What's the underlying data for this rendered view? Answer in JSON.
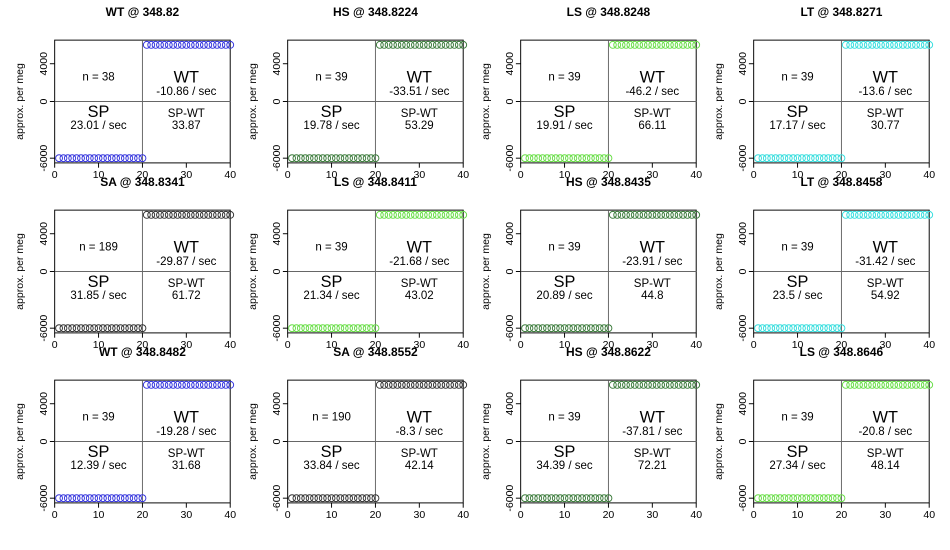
{
  "y_axis_label": "approx. per meg",
  "x_ticks": [
    "0",
    "10",
    "20",
    "30",
    "40"
  ],
  "y_ticks": [
    "-6000",
    "0",
    "4000"
  ],
  "sp_label": "SP",
  "wt_label": "WT",
  "diff_label": "SP-WT",
  "colors": {
    "blue": "#3333dd",
    "darkgreen": "#3a7a3a",
    "lightgreen": "#66dd44",
    "cyan": "#33dddd",
    "black": "#333333"
  },
  "panels": [
    {
      "title": "WT @ 348.82",
      "n_text": "n = 38",
      "wt_rate": "-10.86 / sec",
      "sp_rate": "23.01 / sec",
      "diff": "33.87",
      "color": "blue"
    },
    {
      "title": "HS @ 348.8224",
      "n_text": "n = 39",
      "wt_rate": "-33.51 / sec",
      "sp_rate": "19.78 / sec",
      "diff": "53.29",
      "color": "darkgreen"
    },
    {
      "title": "LS @ 348.8248",
      "n_text": "n = 39",
      "wt_rate": "-46.2 / sec",
      "sp_rate": "19.91 / sec",
      "diff": "66.11",
      "color": "lightgreen"
    },
    {
      "title": "LT @ 348.8271",
      "n_text": "n = 39",
      "wt_rate": "-13.6 / sec",
      "sp_rate": "17.17 / sec",
      "diff": "30.77",
      "color": "cyan"
    },
    {
      "title": "SA @ 348.8341",
      "n_text": "n = 189",
      "wt_rate": "-29.87 / sec",
      "sp_rate": "31.85 / sec",
      "diff": "61.72",
      "color": "black"
    },
    {
      "title": "LS @ 348.8411",
      "n_text": "n = 39",
      "wt_rate": "-21.68 / sec",
      "sp_rate": "21.34 / sec",
      "diff": "43.02",
      "color": "lightgreen"
    },
    {
      "title": "HS @ 348.8435",
      "n_text": "n = 39",
      "wt_rate": "-23.91 / sec",
      "sp_rate": "20.89 / sec",
      "diff": "44.8",
      "color": "darkgreen"
    },
    {
      "title": "LT @ 348.8458",
      "n_text": "n = 39",
      "wt_rate": "-31.42 / sec",
      "sp_rate": "23.5 / sec",
      "diff": "54.92",
      "color": "cyan"
    },
    {
      "title": "WT @ 348.8482",
      "n_text": "n = 39",
      "wt_rate": "-19.28 / sec",
      "sp_rate": "12.39 / sec",
      "diff": "31.68",
      "color": "blue"
    },
    {
      "title": "SA @ 348.8552",
      "n_text": "n = 190",
      "wt_rate": "-8.3 / sec",
      "sp_rate": "33.84 / sec",
      "diff": "42.14",
      "color": "black"
    },
    {
      "title": "HS @ 348.8622",
      "n_text": "n = 39",
      "wt_rate": "-37.81 / sec",
      "sp_rate": "34.39 / sec",
      "diff": "72.21",
      "color": "darkgreen"
    },
    {
      "title": "LS @ 348.8646",
      "n_text": "n = 39",
      "wt_rate": "-20.8 / sec",
      "sp_rate": "27.34 / sec",
      "diff": "48.14",
      "color": "lightgreen"
    }
  ],
  "chart_data": {
    "type": "scatter",
    "layout": "3 rows x 4 columns of small multiples",
    "xlim": [
      0,
      40
    ],
    "ylim": [
      -6500,
      6500
    ],
    "grid": false,
    "markers": "open circles",
    "x": [
      1,
      2,
      3,
      4,
      5,
      6,
      7,
      8,
      9,
      10,
      11,
      12,
      13,
      14,
      15,
      16,
      17,
      18,
      19,
      20,
      21,
      22,
      23,
      24,
      25,
      26,
      27,
      28,
      29,
      30,
      31,
      32,
      33,
      34,
      35,
      36,
      37,
      38,
      39,
      40
    ],
    "low_level": -6000,
    "high_level": 6000,
    "switch_after_x": 20
  }
}
